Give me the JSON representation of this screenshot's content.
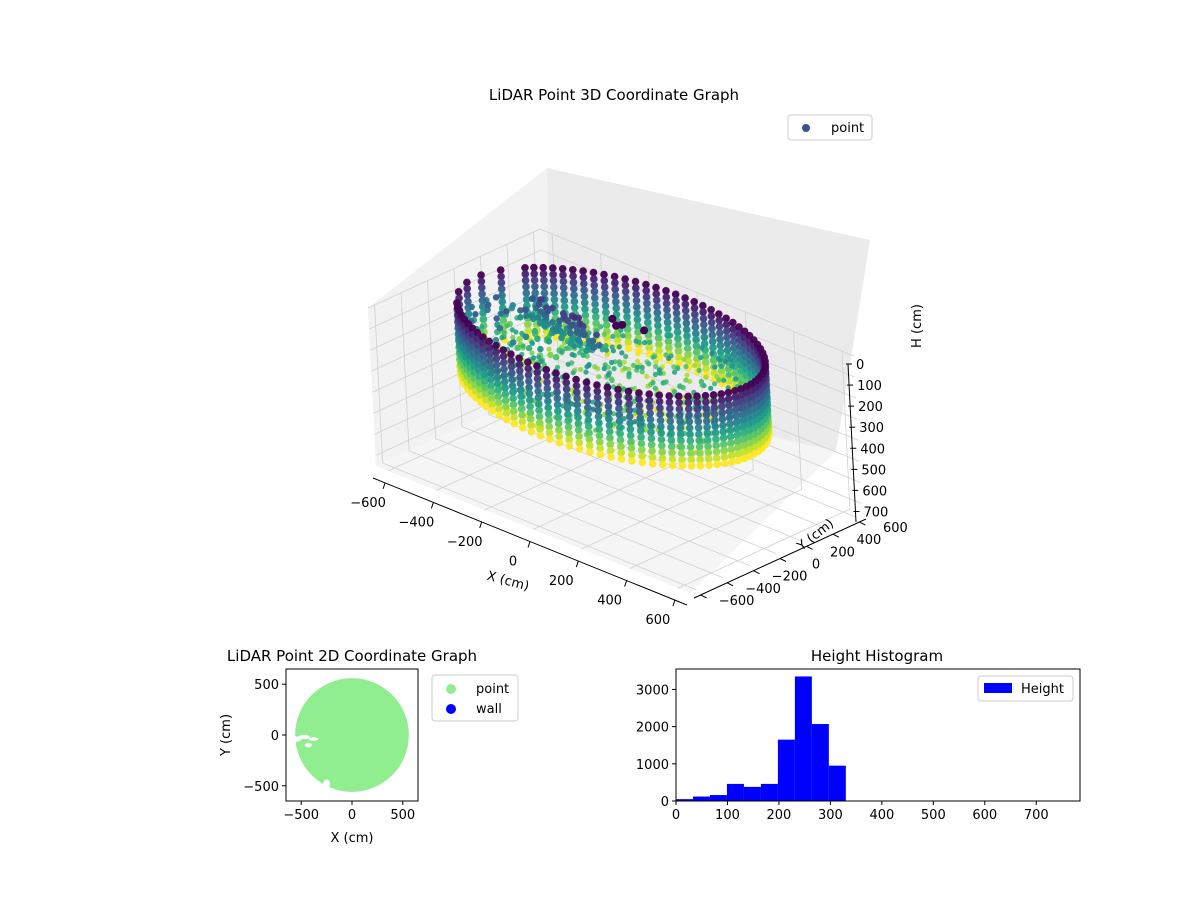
{
  "chart_data": [
    {
      "type": "scatter",
      "projection": "3d",
      "title": "LiDAR Point 3D Coordinate Graph",
      "xlabel": "X (cm)",
      "ylabel": "Y (cm)",
      "zlabel": "H (cm)",
      "xticks": [
        "−600",
        "−400",
        "−200",
        "0",
        "200",
        "400",
        "600"
      ],
      "yticks": [
        "−600",
        "−400",
        "−200",
        "0",
        "200",
        "400",
        "600"
      ],
      "zticks": [
        "0",
        "100",
        "200",
        "300",
        "400",
        "500",
        "600",
        "700"
      ],
      "xlim": [
        -650,
        650
      ],
      "ylim": [
        -650,
        650
      ],
      "zlim": [
        0,
        750
      ],
      "z_inverted": true,
      "colormap": "viridis",
      "legend": {
        "position": "upper-right",
        "entries": [
          {
            "name": "point",
            "color": "#3b528b"
          }
        ]
      },
      "grid": true,
      "wall_radius": 560,
      "wall_h_range": [
        0,
        330
      ]
    },
    {
      "type": "scatter",
      "title": "LiDAR Point 2D Coordinate Graph",
      "xlabel": "X (cm)",
      "ylabel": "Y (cm)",
      "xticks": [
        "−500",
        "0",
        "500"
      ],
      "yticks": [
        "500",
        "0",
        "−500"
      ],
      "xlim": [
        -650,
        650
      ],
      "ylim": [
        -650,
        650
      ],
      "series": [
        {
          "name": "point",
          "color": "#90ee90",
          "radius": 560
        },
        {
          "name": "wall",
          "color": "#0000ff"
        }
      ],
      "legend": {
        "position": "outside-right"
      }
    },
    {
      "type": "bar",
      "subtype": "histogram",
      "title": "Height Histogram",
      "xticks": [
        "0",
        "100",
        "200",
        "300",
        "400",
        "500",
        "600",
        "700"
      ],
      "yticks": [
        "0",
        "1000",
        "2000",
        "3000"
      ],
      "xlim": [
        0,
        785
      ],
      "ylim": [
        0,
        3550
      ],
      "bin_edges": [
        0,
        33,
        66,
        99,
        132,
        165,
        198,
        231,
        264,
        297,
        330
      ],
      "values": [
        50,
        120,
        160,
        460,
        380,
        460,
        1650,
        3350,
        2070,
        950
      ],
      "series_name": "Height",
      "color": "#0000ff",
      "legend": {
        "position": "upper-right"
      }
    }
  ]
}
